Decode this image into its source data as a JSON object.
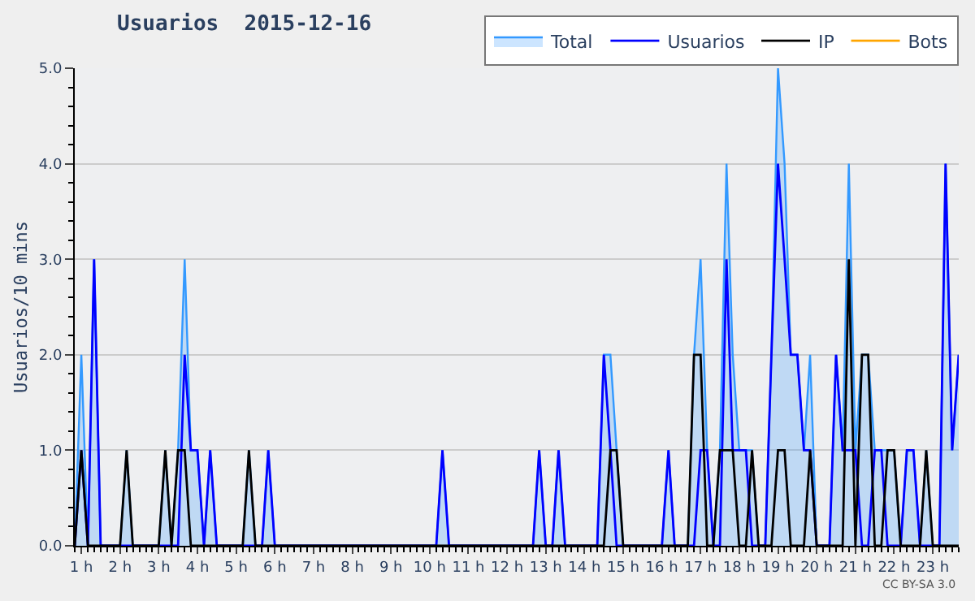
{
  "chart_data": {
    "type": "line",
    "title": "Usuarios  2015-12-16",
    "ylabel": "Usuarios/10 mins",
    "x": [
      0.83,
      1,
      1.17,
      1.33,
      1.5,
      1.67,
      1.83,
      2,
      2.17,
      2.33,
      2.5,
      2.67,
      2.83,
      3,
      3.17,
      3.33,
      3.5,
      3.67,
      3.83,
      4,
      4.17,
      4.33,
      4.5,
      4.67,
      4.83,
      5,
      5.17,
      5.33,
      5.5,
      5.67,
      5.83,
      6,
      6.17,
      6.33,
      6.5,
      6.67,
      6.83,
      7,
      7.17,
      7.33,
      7.5,
      7.67,
      7.83,
      8,
      8.17,
      8.33,
      8.5,
      8.67,
      8.83,
      9,
      9.17,
      9.33,
      9.5,
      9.67,
      9.83,
      10,
      10.17,
      10.33,
      10.5,
      10.67,
      10.83,
      11,
      11.17,
      11.33,
      11.5,
      11.67,
      11.83,
      12,
      12.17,
      12.33,
      12.5,
      12.67,
      12.83,
      13,
      13.17,
      13.33,
      13.5,
      13.67,
      13.83,
      14,
      14.17,
      14.33,
      14.5,
      14.67,
      14.83,
      15,
      15.17,
      15.33,
      15.5,
      15.67,
      15.83,
      16,
      16.17,
      16.33,
      16.5,
      16.67,
      16.83,
      17,
      17.17,
      17.33,
      17.5,
      17.67,
      17.83,
      18,
      18.17,
      18.33,
      18.5,
      18.67,
      18.83,
      19,
      19.17,
      19.33,
      19.5,
      19.67,
      19.83,
      20,
      20.17,
      20.33,
      20.5,
      20.67,
      20.83,
      21,
      21.17,
      21.33,
      21.5,
      21.67,
      21.83,
      22,
      22.17,
      22.33,
      22.5,
      22.67,
      22.83,
      23,
      23.17,
      23.33,
      23.5,
      23.67
    ],
    "series": [
      {
        "name": "Total",
        "type": "area",
        "color": "#3399ff",
        "values": [
          0,
          2,
          0,
          3,
          0,
          0,
          0,
          0,
          1,
          0,
          0,
          0,
          0,
          0,
          1,
          0,
          1,
          3,
          1,
          1,
          0,
          1,
          0,
          0,
          0,
          0,
          0,
          1,
          0,
          0,
          1,
          0,
          0,
          0,
          0,
          0,
          0,
          0,
          0,
          0,
          0,
          0,
          0,
          0,
          0,
          0,
          0,
          0,
          0,
          0,
          0,
          0,
          0,
          0,
          0,
          0,
          0,
          1,
          0,
          0,
          0,
          0,
          0,
          0,
          0,
          0,
          0,
          0,
          0,
          0,
          0,
          0,
          1,
          0,
          0,
          1,
          0,
          0,
          0,
          0,
          0,
          0,
          2,
          2,
          1,
          0,
          0,
          0,
          0,
          0,
          0,
          0,
          1,
          0,
          0,
          0,
          2,
          3,
          1,
          0,
          1,
          4,
          2,
          1,
          1,
          1,
          0,
          0,
          2,
          5,
          4,
          2,
          2,
          1,
          2,
          0,
          0,
          0,
          2,
          1,
          4,
          1,
          2,
          2,
          1,
          1,
          1,
          1,
          0,
          1,
          1,
          0,
          1,
          0,
          0,
          4,
          1,
          2
        ]
      },
      {
        "name": "Usuarios",
        "color": "#0000ff",
        "values": [
          0,
          1,
          0,
          3,
          0,
          0,
          0,
          0,
          0,
          0,
          0,
          0,
          0,
          0,
          0,
          0,
          0,
          2,
          1,
          1,
          0,
          1,
          0,
          0,
          0,
          0,
          0,
          0,
          0,
          0,
          1,
          0,
          0,
          0,
          0,
          0,
          0,
          0,
          0,
          0,
          0,
          0,
          0,
          0,
          0,
          0,
          0,
          0,
          0,
          0,
          0,
          0,
          0,
          0,
          0,
          0,
          0,
          1,
          0,
          0,
          0,
          0,
          0,
          0,
          0,
          0,
          0,
          0,
          0,
          0,
          0,
          0,
          1,
          0,
          0,
          1,
          0,
          0,
          0,
          0,
          0,
          0,
          2,
          1,
          0,
          0,
          0,
          0,
          0,
          0,
          0,
          0,
          1,
          0,
          0,
          0,
          0,
          1,
          1,
          0,
          0,
          3,
          1,
          1,
          1,
          0,
          0,
          0,
          2,
          4,
          3,
          2,
          2,
          1,
          1,
          0,
          0,
          0,
          2,
          1,
          1,
          1,
          0,
          0,
          1,
          1,
          0,
          0,
          0,
          1,
          1,
          0,
          0,
          0,
          0,
          4,
          1,
          2
        ]
      },
      {
        "name": "IP",
        "color": "#000000",
        "values": [
          0,
          1,
          0,
          0,
          0,
          0,
          0,
          0,
          1,
          0,
          0,
          0,
          0,
          0,
          1,
          0,
          1,
          1,
          0,
          0,
          0,
          0,
          0,
          0,
          0,
          0,
          0,
          1,
          0,
          0,
          0,
          0,
          0,
          0,
          0,
          0,
          0,
          0,
          0,
          0,
          0,
          0,
          0,
          0,
          0,
          0,
          0,
          0,
          0,
          0,
          0,
          0,
          0,
          0,
          0,
          0,
          0,
          0,
          0,
          0,
          0,
          0,
          0,
          0,
          0,
          0,
          0,
          0,
          0,
          0,
          0,
          0,
          0,
          0,
          0,
          0,
          0,
          0,
          0,
          0,
          0,
          0,
          0,
          1,
          1,
          0,
          0,
          0,
          0,
          0,
          0,
          0,
          0,
          0,
          0,
          0,
          2,
          2,
          0,
          0,
          1,
          1,
          1,
          0,
          0,
          1,
          0,
          0,
          0,
          1,
          1,
          0,
          0,
          0,
          1,
          0,
          0,
          0,
          0,
          0,
          3,
          0,
          2,
          2,
          0,
          0,
          1,
          1,
          0,
          0,
          0,
          0,
          1,
          0,
          0,
          0,
          0,
          0
        ]
      },
      {
        "name": "Bots",
        "color": "#ffa500",
        "values": [
          null,
          null,
          null,
          null,
          null,
          null,
          null,
          null,
          null,
          null,
          null,
          null,
          null,
          null,
          null,
          null,
          null,
          null,
          null,
          null,
          null,
          null,
          null,
          null,
          null,
          null,
          null,
          null,
          null,
          null,
          null,
          null,
          null,
          null,
          null,
          null,
          null,
          null,
          null,
          null,
          null,
          null,
          null,
          null,
          null,
          null,
          null,
          null,
          null,
          null,
          null,
          null,
          null,
          null,
          null,
          null,
          null,
          null,
          null,
          null,
          null,
          null,
          null,
          null,
          null,
          null,
          null,
          null,
          null,
          null,
          null,
          null,
          null,
          null,
          null,
          null,
          null,
          null,
          null,
          null,
          null,
          null,
          null,
          null,
          null,
          null,
          null,
          null,
          null,
          null,
          null,
          null,
          null,
          null,
          null,
          null,
          null,
          null,
          null,
          null,
          null,
          null,
          null,
          null,
          null,
          null,
          null,
          null,
          null,
          null,
          null,
          null,
          null,
          null,
          null,
          null,
          null,
          null,
          null,
          null,
          null,
          null,
          null,
          null,
          null,
          null,
          null,
          null,
          null,
          null,
          null,
          null,
          null,
          null,
          null,
          null,
          null,
          null
        ]
      }
    ],
    "xlim": [
      0.83,
      23.67
    ],
    "xticks": [
      {
        "value": 1,
        "label": "1 h"
      },
      {
        "value": 2,
        "label": "2 h"
      },
      {
        "value": 3,
        "label": "3 h"
      },
      {
        "value": 4,
        "label": "4 h"
      },
      {
        "value": 5,
        "label": "5 h"
      },
      {
        "value": 6,
        "label": "6 h"
      },
      {
        "value": 7,
        "label": "7 h"
      },
      {
        "value": 8,
        "label": "8 h"
      },
      {
        "value": 9,
        "label": "9 h"
      },
      {
        "value": 10,
        "label": "10 h"
      },
      {
        "value": 11,
        "label": "11 h"
      },
      {
        "value": 12,
        "label": "12 h"
      },
      {
        "value": 13,
        "label": "13 h"
      },
      {
        "value": 14,
        "label": "14 h"
      },
      {
        "value": 15,
        "label": "15 h"
      },
      {
        "value": 16,
        "label": "16 h"
      },
      {
        "value": 17,
        "label": "17 h"
      },
      {
        "value": 18,
        "label": "18 h"
      },
      {
        "value": 19,
        "label": "19 h"
      },
      {
        "value": 20,
        "label": "20 h"
      },
      {
        "value": 21,
        "label": "21 h"
      },
      {
        "value": 22,
        "label": "22 h"
      },
      {
        "value": 23,
        "label": "23 h"
      }
    ],
    "ylim": [
      0,
      5
    ],
    "yticks": [
      {
        "value": 0,
        "label": "0.0"
      },
      {
        "value": 1,
        "label": "1.0"
      },
      {
        "value": 2,
        "label": "2.0"
      },
      {
        "value": 3,
        "label": "3.0"
      },
      {
        "value": 4,
        "label": "4.0"
      },
      {
        "value": 5,
        "label": "5.0"
      }
    ],
    "grid": "y",
    "legend": "top right",
    "marker": "none",
    "line_style": "solid",
    "annotations": [
      "CC BY-SA 3.0"
    ]
  }
}
